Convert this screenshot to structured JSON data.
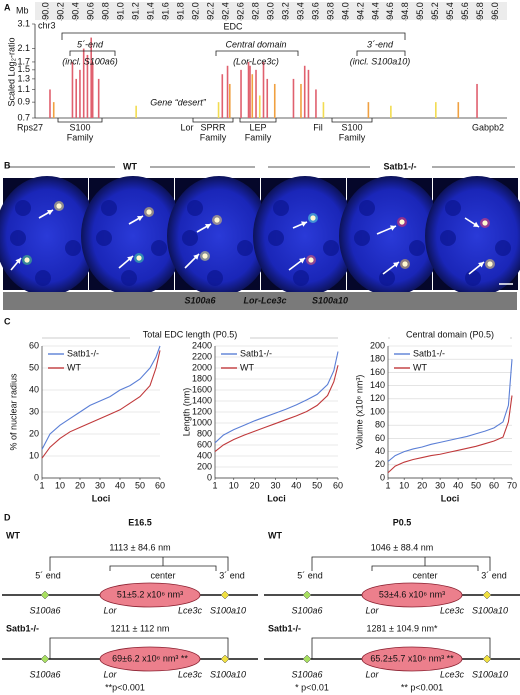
{
  "panel_labels": [
    "A",
    "B",
    "C",
    "D"
  ],
  "chart_data": [
    {
      "type": "bar",
      "x_label": "Mb",
      "chrom": "chr3",
      "y_label": "Scaled Log₂-ratio",
      "xlim": [
        89.85,
        96.15
      ],
      "xticks": [
        {
          "value": 90,
          "label": "90.0"
        },
        90.2,
        90.4,
        90.6,
        90.8,
        {
          "value": 91,
          "label": "91.0"
        },
        91.2,
        91.4,
        91.6,
        91.8,
        {
          "value": 92,
          "label": "92.0"
        },
        92.2,
        92.4,
        92.6,
        92.8,
        {
          "value": 93,
          "label": "93.0"
        },
        93.2,
        93.4,
        93.6,
        93.8,
        {
          "value": 94,
          "label": "94.0"
        },
        94.2,
        94.4,
        94.6,
        94.8,
        {
          "value": 95,
          "label": "95.0"
        },
        95.2,
        95.4,
        95.6,
        95.8,
        {
          "value": 96,
          "label": "96.0"
        }
      ],
      "ylim": [
        0.7,
        3.1
      ],
      "yticks": [
        0.7,
        0.9,
        1.1,
        1.3,
        1.5,
        1.7,
        2.1,
        3.1
      ],
      "log_scale": true,
      "series": [
        {
          "color": "#e0606e",
          "x": [
            90.05,
            90.35,
            90.4,
            90.45,
            90.5,
            90.55,
            90.6,
            90.62,
            90.7,
            92.35,
            92.42,
            92.6,
            92.7,
            92.72,
            92.8,
            92.9,
            92.95,
            93.3,
            93.45,
            93.5,
            93.6,
            95.75
          ],
          "values": [
            1.1,
            1.7,
            1.3,
            1.5,
            2.1,
            1.9,
            2.5,
            1.7,
            1.3,
            1.4,
            1.6,
            1.5,
            1.7,
            1.6,
            1.5,
            1.7,
            1.3,
            1.3,
            1.6,
            1.5,
            1.1,
            1.2
          ]
        },
        {
          "color": "#f0a040",
          "x": [
            90.1,
            92.45,
            92.75,
            93.05,
            93.4,
            94.3,
            95.5
          ],
          "values": [
            0.9,
            1.2,
            1.4,
            1.2,
            1.2,
            0.9,
            0.9
          ]
        },
        {
          "color": "#f2dc50",
          "x": [
            91.2,
            92.3,
            92.85,
            93.7,
            94.6,
            95.2
          ],
          "values": [
            0.85,
            0.9,
            1.0,
            0.9,
            0.85,
            0.9
          ]
        }
      ],
      "annotations": {
        "region": "EDC",
        "five_end": "5´-end",
        "five_note": "(incl. S100a6)",
        "central": "Central domain",
        "central_note": "(Lor-Lce3c)",
        "three_end": "3´-end",
        "three_note": "(incl. S100a10)",
        "desert": "Gene “desert”"
      },
      "genes": [
        [
          "Rps27"
        ],
        [
          "S100",
          "Family"
        ],
        [
          "Lor"
        ],
        [
          "SPRR",
          "Family"
        ],
        [
          "LEP",
          "Family"
        ],
        [
          "Fil"
        ],
        [
          "S100",
          "Family"
        ],
        [
          "Gabpb2"
        ]
      ]
    },
    {
      "type": "line",
      "title": "Total EDC length (P0.5)",
      "y_label": "% of nuclear radius",
      "x_label": "Loci",
      "xlim": [
        1,
        60
      ],
      "xticks": [
        1,
        10,
        20,
        30,
        40,
        50,
        60
      ],
      "ylim": [
        0,
        60
      ],
      "yticks": [
        0,
        10,
        20,
        30,
        40,
        50,
        60
      ],
      "grid": true,
      "x": [
        1,
        5,
        10,
        15,
        20,
        25,
        30,
        35,
        40,
        45,
        50,
        55,
        58,
        60
      ],
      "series": [
        {
          "name": "Satb1-/-",
          "color": "#5b7fd6",
          "values": [
            13,
            20,
            24,
            27,
            30,
            33,
            35,
            37,
            40,
            42,
            45,
            50,
            55,
            60
          ]
        },
        {
          "name": "WT",
          "color": "#c0393b",
          "values": [
            9,
            14,
            18,
            21,
            23,
            25,
            27,
            29,
            31,
            34,
            37,
            42,
            50,
            58
          ]
        }
      ]
    },
    {
      "type": "line",
      "y_label": "Length (nm)",
      "x_label": "Loci",
      "xlim": [
        1,
        60
      ],
      "xticks": [
        1,
        10,
        20,
        30,
        40,
        50,
        60
      ],
      "ylim": [
        0,
        2400
      ],
      "yticks": [
        0,
        200,
        400,
        600,
        800,
        1000,
        1200,
        1400,
        1600,
        1800,
        2000,
        2200,
        2400
      ],
      "grid": true,
      "x": [
        1,
        5,
        10,
        15,
        20,
        25,
        30,
        35,
        40,
        45,
        50,
        55,
        58,
        60
      ],
      "series": [
        {
          "name": "Satb1-/-",
          "color": "#5b7fd6",
          "values": [
            640,
            780,
            880,
            960,
            1040,
            1110,
            1180,
            1250,
            1330,
            1420,
            1520,
            1700,
            1950,
            2300
          ]
        },
        {
          "name": "WT",
          "color": "#c0393b",
          "values": [
            480,
            600,
            700,
            780,
            850,
            920,
            990,
            1060,
            1130,
            1210,
            1320,
            1500,
            1750,
            2050
          ]
        }
      ]
    },
    {
      "type": "line",
      "title": "Central domain (P0.5)",
      "y_label": "Volume (x10⁶ nm³)",
      "x_label": "Loci",
      "xlim": [
        1,
        70
      ],
      "xticks": [
        1,
        10,
        20,
        30,
        40,
        50,
        60,
        70
      ],
      "ylim": [
        0,
        200
      ],
      "yticks": [
        0,
        20,
        40,
        60,
        80,
        100,
        120,
        140,
        160,
        180,
        200
      ],
      "grid": true,
      "x": [
        1,
        5,
        10,
        15,
        20,
        25,
        30,
        35,
        40,
        45,
        50,
        55,
        60,
        65,
        68,
        70
      ],
      "series": [
        {
          "name": "Satb1-/-",
          "color": "#5b7fd6",
          "values": [
            25,
            34,
            40,
            44,
            47,
            51,
            54,
            57,
            60,
            63,
            67,
            71,
            76,
            85,
            110,
            180
          ]
        },
        {
          "name": "WT",
          "color": "#c0393b",
          "values": [
            8,
            18,
            24,
            28,
            31,
            34,
            36,
            39,
            42,
            45,
            48,
            52,
            56,
            62,
            85,
            125
          ]
        }
      ]
    }
  ],
  "panel_b": {
    "groups": [
      "WT",
      "Satb1-/-"
    ],
    "probes": [
      "S100a6",
      "Lor-Lce3c",
      "S100a10"
    ]
  },
  "panel_d": {
    "markers": {
      "five_end": "5´ end",
      "center": "center",
      "three_end": "3´ end",
      "genes": [
        "S100a6",
        "Lor",
        "Lce3c",
        "S100a10"
      ]
    },
    "columns": [
      {
        "title": "E16.5",
        "wt": {
          "label": "WT",
          "length": "1113 ± 84.6 nm",
          "volume": "51±5.2 x10⁶ nm³"
        },
        "ko": {
          "label": "Satb1-/-",
          "length": "1211 ± 112 nm",
          "volume": "69±6.2 x10⁶ nm³ **"
        },
        "footnotes": [
          "**p<0.001"
        ]
      },
      {
        "title": "P0.5",
        "wt": {
          "label": "WT",
          "length": "1046 ± 88.4 nm",
          "volume": "53±4.6 x10⁶ nm³"
        },
        "ko": {
          "label": "Satb1-/-",
          "length": "1281 ± 104.9 nm*",
          "volume": "65.2±5.7 x10⁶ nm³ **"
        },
        "footnotes": [
          "* p<0.01",
          "** p<0.001"
        ]
      }
    ]
  }
}
